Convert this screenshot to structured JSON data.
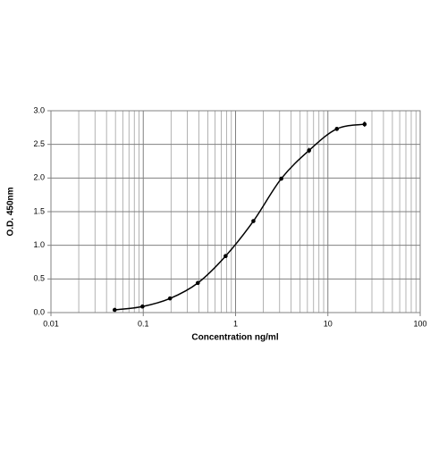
{
  "chart_data": {
    "type": "scatter",
    "x_label": "Concentration ng/ml",
    "y_label": "O.D. 450nm",
    "x_log": true,
    "grid": true,
    "xlim": [
      0.01,
      100
    ],
    "xticks": [
      0.01,
      0.1,
      1,
      10,
      100
    ],
    "x_minor_grid": [
      0.02,
      0.03,
      0.04,
      0.05,
      0.06,
      0.07,
      0.08,
      0.09,
      0.2,
      0.3,
      0.4,
      0.5,
      0.6,
      0.7,
      0.8,
      0.9,
      2,
      3,
      4,
      5,
      6,
      7,
      8,
      9,
      20,
      30,
      40,
      50,
      60,
      70,
      80,
      90
    ],
    "ylim": [
      0,
      3
    ],
    "yticks": [
      {
        "value": 0,
        "label": "0.0"
      },
      0.5,
      {
        "value": 1,
        "label": "1.0"
      },
      1.5,
      {
        "value": 2,
        "label": "2.0"
      },
      2.5,
      {
        "value": 3,
        "label": "3.0"
      }
    ],
    "x": [
      0.049,
      0.098,
      0.195,
      0.39,
      0.78,
      1.56,
      3.125,
      6.25,
      12.5,
      25
    ],
    "series": [
      {
        "color": "#000000",
        "values": [
          0.04,
          0.09,
          0.21,
          0.44,
          0.84,
          1.36,
          1.99,
          2.41,
          2.73,
          2.8
        ],
        "errors": [
          0.01,
          0.01,
          0.01,
          0.01,
          0.03,
          0.02,
          0.01,
          0.04,
          0.03,
          0.04
        ]
      }
    ]
  }
}
